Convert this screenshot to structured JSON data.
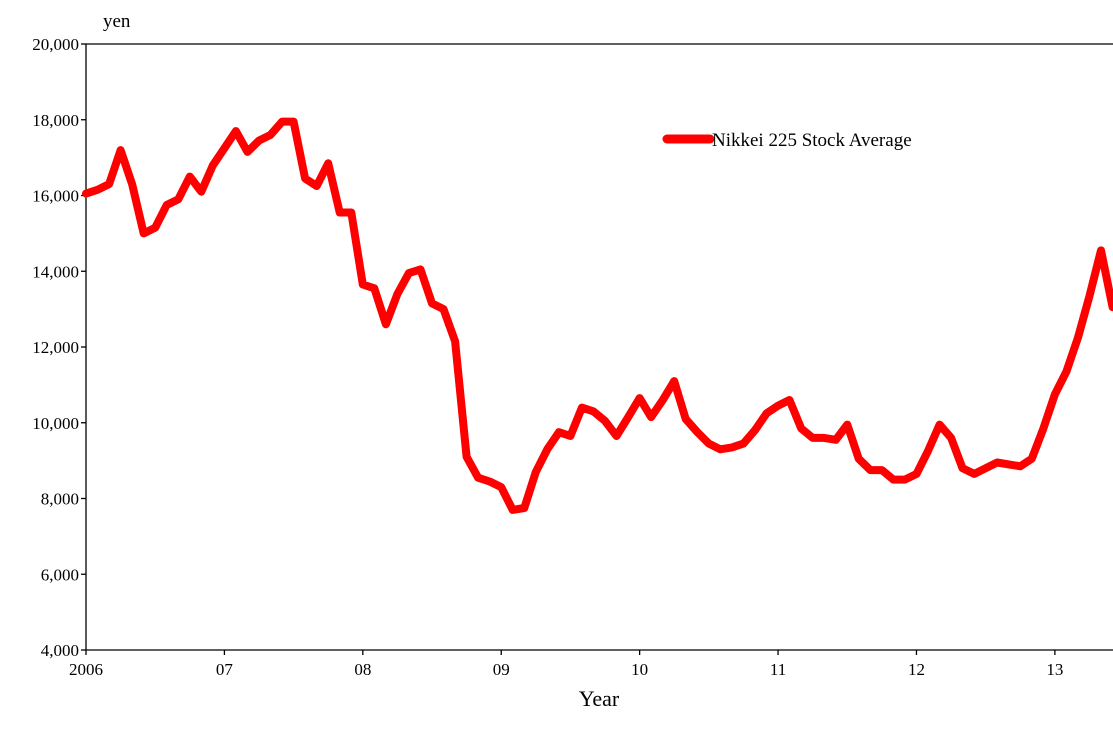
{
  "chart_data": {
    "type": "line",
    "unit_label": "yen",
    "xlabel": "Year",
    "ylabel": "",
    "ylim": [
      4000,
      20000
    ],
    "y_ticks": [
      4000,
      6000,
      8000,
      10000,
      12000,
      14000,
      16000,
      18000,
      20000
    ],
    "y_tick_labels": [
      "4,000",
      "6,000",
      "8,000",
      "10,000",
      "12,000",
      "14,000",
      "16,000",
      "18,000",
      "20,000"
    ],
    "x_ticks": [
      2006,
      2007,
      2008,
      2009,
      2010,
      2011,
      2012,
      2013
    ],
    "x_tick_labels": [
      "2006",
      "07",
      "08",
      "09",
      "10",
      "11",
      "12",
      "13"
    ],
    "xlim": [
      2006.0,
      2013.42
    ],
    "grid": false,
    "legend_position": "top-right",
    "colors": {
      "series": "#ff0000",
      "axis": "#000000"
    },
    "series": [
      {
        "name": "Nikkei 225 Stock Average",
        "x": [
          2006.0,
          2006.083,
          2006.167,
          2006.25,
          2006.333,
          2006.417,
          2006.5,
          2006.583,
          2006.667,
          2006.75,
          2006.833,
          2006.917,
          2007.0,
          2007.083,
          2007.167,
          2007.25,
          2007.333,
          2007.417,
          2007.5,
          2007.583,
          2007.667,
          2007.75,
          2007.833,
          2007.917,
          2008.0,
          2008.083,
          2008.167,
          2008.25,
          2008.333,
          2008.417,
          2008.5,
          2008.583,
          2008.667,
          2008.75,
          2008.833,
          2008.917,
          2009.0,
          2009.083,
          2009.167,
          2009.25,
          2009.333,
          2009.417,
          2009.5,
          2009.583,
          2009.667,
          2009.75,
          2009.833,
          2009.917,
          2010.0,
          2010.083,
          2010.167,
          2010.25,
          2010.333,
          2010.417,
          2010.5,
          2010.583,
          2010.667,
          2010.75,
          2010.833,
          2010.917,
          2011.0,
          2011.083,
          2011.167,
          2011.25,
          2011.333,
          2011.417,
          2011.5,
          2011.583,
          2011.667,
          2011.75,
          2011.833,
          2011.917,
          2012.0,
          2012.083,
          2012.167,
          2012.25,
          2012.333,
          2012.417,
          2012.5,
          2012.583,
          2012.667,
          2012.75,
          2012.833,
          2012.917,
          2013.0,
          2013.083,
          2013.167,
          2013.25,
          2013.333,
          2013.417
        ],
        "values": [
          16050,
          16150,
          16300,
          17200,
          16300,
          15000,
          15150,
          15750,
          15900,
          16500,
          16100,
          16800,
          17250,
          17700,
          17150,
          17450,
          17600,
          17950,
          17950,
          16450,
          16250,
          16850,
          15550,
          15550,
          13650,
          13550,
          12600,
          13400,
          13950,
          14050,
          13150,
          13000,
          12150,
          9100,
          8550,
          8450,
          8300,
          7700,
          7750,
          8700,
          9300,
          9750,
          9650,
          10400,
          10300,
          10050,
          9650,
          10150,
          10650,
          10150,
          10600,
          11100,
          10100,
          9750,
          9450,
          9300,
          9350,
          9450,
          9800,
          10250,
          10450,
          10600,
          9850,
          9600,
          9600,
          9550,
          9950,
          9050,
          8750,
          8750,
          8500,
          8500,
          8650,
          9250,
          9950,
          9600,
          8800,
          8650,
          8800,
          8950,
          8900,
          8850,
          9050,
          9850,
          10750,
          11350,
          12250,
          13350,
          14550,
          13050
        ]
      }
    ]
  }
}
